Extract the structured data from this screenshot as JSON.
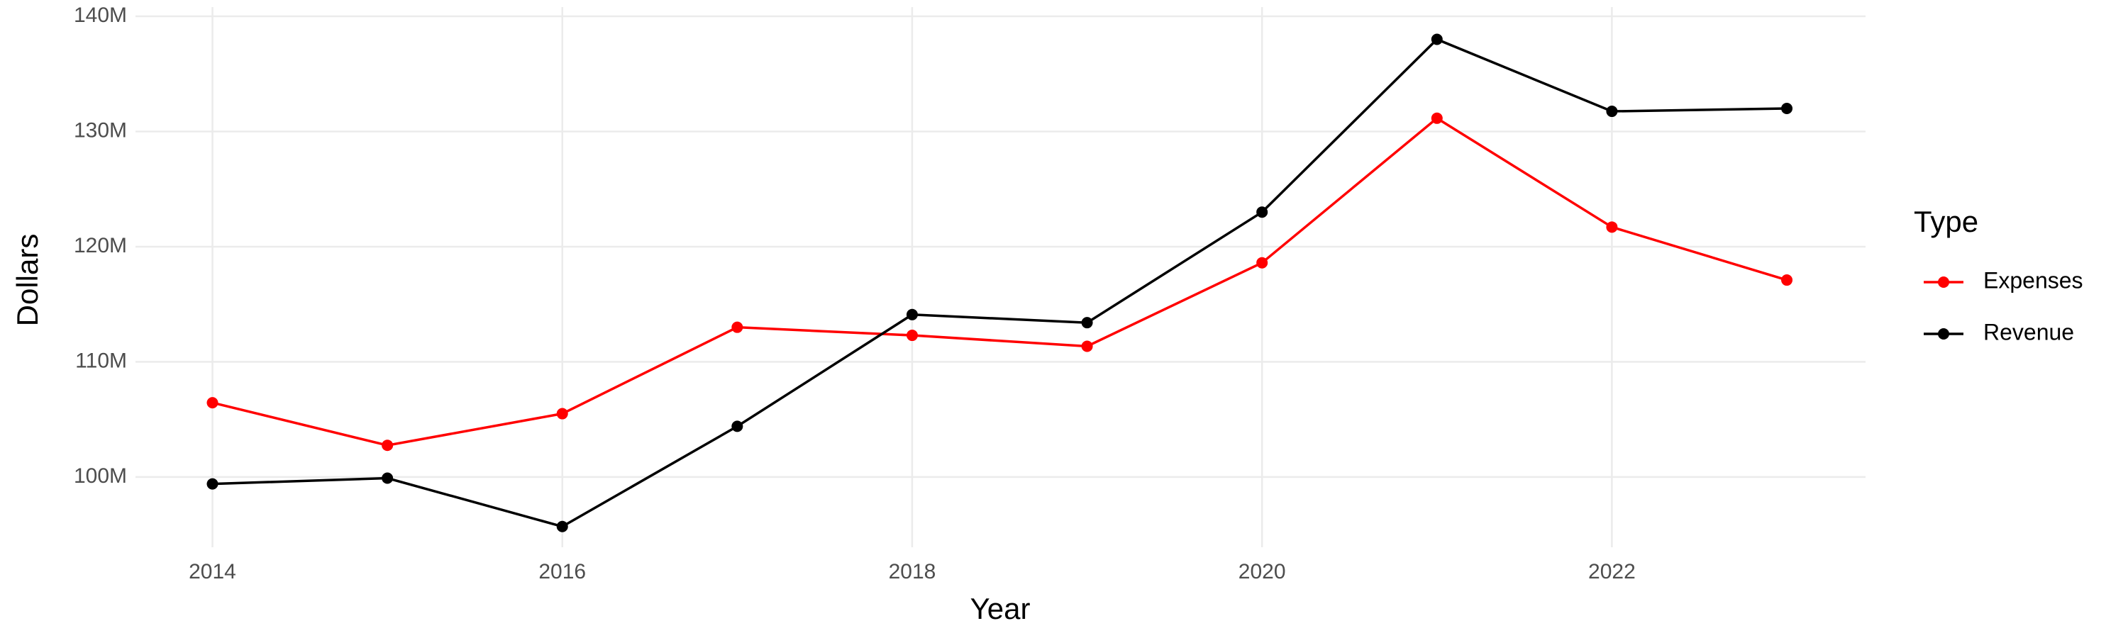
{
  "chart_data": {
    "type": "line",
    "x_label": "Year",
    "y_label": "Dollars",
    "legend_title": "Type",
    "x": [
      2014,
      2015,
      2016,
      2017,
      2018,
      2019,
      2020,
      2021,
      2022,
      2023
    ],
    "series": [
      {
        "name": "Expenses",
        "color": "#ff0000",
        "values": [
          106450000,
          102750000,
          105500000,
          113000000,
          112300000,
          111350000,
          118600000,
          131150000,
          121700000,
          117100000
        ]
      },
      {
        "name": "Revenue",
        "color": "#000000",
        "values": [
          99400000,
          99900000,
          95700000,
          104400000,
          114100000,
          113400000,
          123000000,
          138000000,
          131750000,
          132000000
        ]
      }
    ],
    "xlim": [
      2013.56,
      2023.45
    ],
    "xticks": [
      2014,
      2016,
      2018,
      2020,
      2022
    ],
    "ylim": [
      93900000,
      140800000
    ],
    "yticks": [
      {
        "value": 100000000,
        "label": "100M"
      },
      {
        "value": 110000000,
        "label": "110M"
      },
      {
        "value": 120000000,
        "label": "120M"
      },
      {
        "value": 130000000,
        "label": "130M"
      },
      {
        "value": 140000000,
        "label": "140M"
      }
    ],
    "grid": true,
    "legend_position": "right"
  }
}
